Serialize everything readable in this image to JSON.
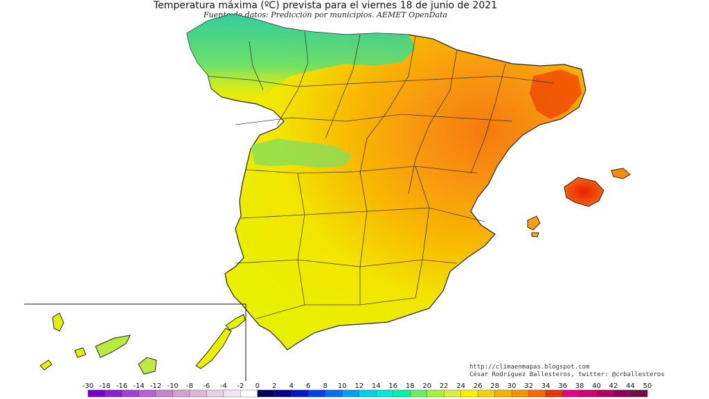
{
  "map": {
    "title": "Temperatura máxima (ºC) prevista para el viernes 18 de junio de 2021",
    "subtitle": "Fuente de datos: Predicción por municipios. AEMET OpenData",
    "credits": {
      "blog": "http://climaenmapas.blogspot.com",
      "author": "César Rodríguez Ballesteros, twitter: @crballesteros"
    },
    "regions": [
      "Península Ibérica",
      "Islas Baleares",
      "Islas Canarias"
    ]
  },
  "legend": {
    "unit": "ºC",
    "ticks": [
      "-30",
      "-18",
      "-16",
      "-14",
      "-12",
      "-10",
      "-8",
      "-6",
      "-4",
      "-2",
      "0",
      "2",
      "4",
      "6",
      "8",
      "10",
      "12",
      "14",
      "16",
      "18",
      "20",
      "22",
      "24",
      "26",
      "28",
      "30",
      "32",
      "34",
      "36",
      "38",
      "40",
      "42",
      "44",
      "50"
    ],
    "colors": [
      "#7a00c8",
      "#8b1fd0",
      "#a040d8",
      "#b860d8",
      "#c880d0",
      "#d4a0d0",
      "#dcb8d8",
      "#e6d0e2",
      "#f0e6f0",
      "#ffffff",
      "#00005a",
      "#00008c",
      "#0018c8",
      "#0040e8",
      "#0070f0",
      "#00a0f8",
      "#00d0f0",
      "#00e8d8",
      "#00f0a8",
      "#60f060",
      "#a8f040",
      "#d8f040",
      "#f8f000",
      "#f8d000",
      "#f8b000",
      "#f89000",
      "#f86800",
      "#f03000",
      "#e80080",
      "#d00070",
      "#b00060",
      "#900050",
      "#701040"
    ]
  }
}
